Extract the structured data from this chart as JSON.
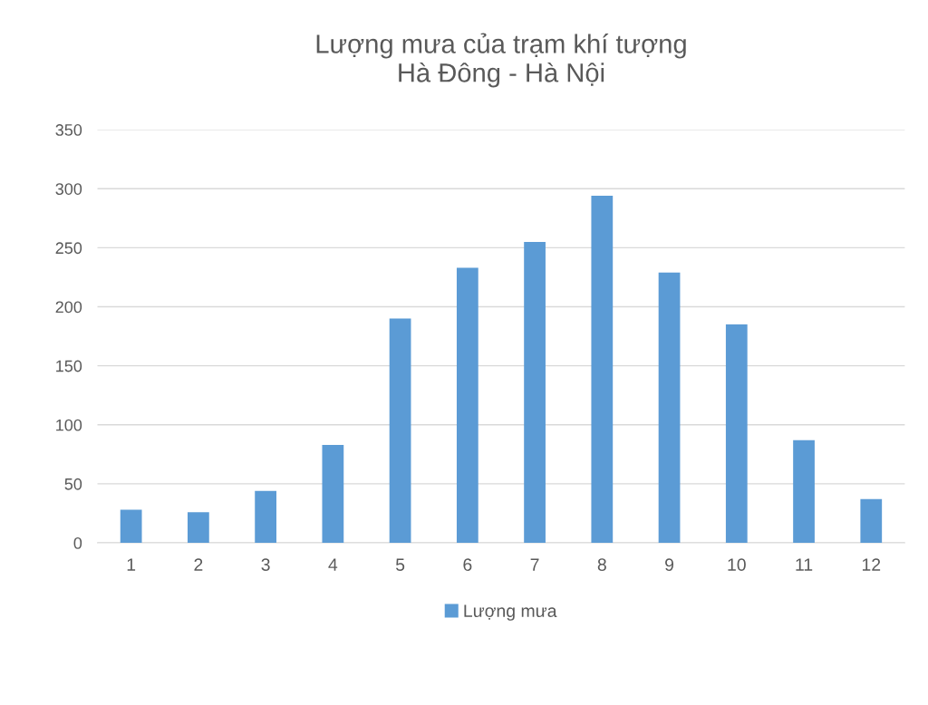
{
  "chart_data": {
    "type": "bar",
    "title": "Lượng mưa của trạm khí tượng\nHà Đông - Hà Nội",
    "categories": [
      "1",
      "2",
      "3",
      "4",
      "5",
      "6",
      "7",
      "8",
      "9",
      "10",
      "11",
      "12"
    ],
    "series": [
      {
        "name": "Lượng mưa",
        "color": "#5b9bd5",
        "values": [
          28,
          26,
          44,
          83,
          190,
          233,
          255,
          294,
          229,
          185,
          87,
          37
        ]
      }
    ],
    "ylim": [
      0,
      350
    ],
    "yticks": [
      0,
      50,
      100,
      150,
      200,
      250,
      300,
      350
    ],
    "grid": "y",
    "legend": "bottom"
  }
}
